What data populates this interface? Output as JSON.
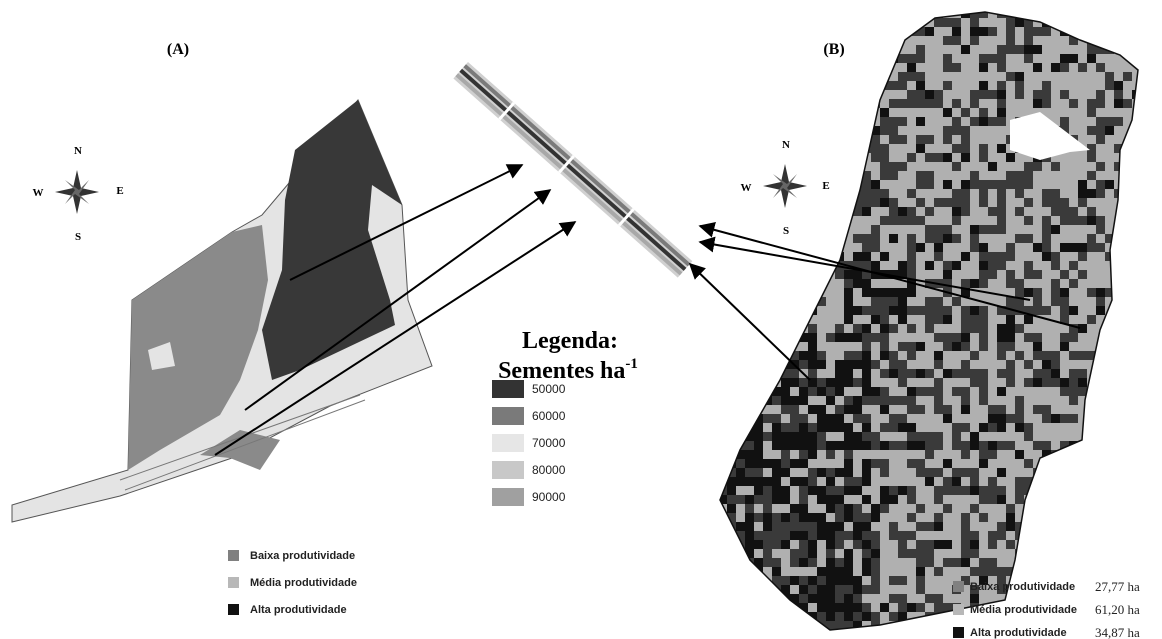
{
  "panel_a": {
    "label": "(A)",
    "compass": {
      "n": "N",
      "s": "S",
      "w": "W",
      "e": "E"
    },
    "legend": [
      "Baixa produtividade",
      "Média produtividade",
      "Alta produtividade"
    ]
  },
  "panel_b": {
    "label": "(B)",
    "compass": {
      "n": "N",
      "s": "S",
      "w": "W",
      "e": "E"
    },
    "legend": [
      {
        "label": "Baixa produtividade",
        "area": "27,77 ha"
      },
      {
        "label": "Média produtividade",
        "area": "61,20 ha"
      },
      {
        "label": "Alta  produtividade",
        "area": "34,87 ha"
      }
    ]
  },
  "seed_legend": {
    "title": "Legenda:",
    "subtitle": "Sementes ha",
    "subtitle_exponent": "-1",
    "values": [
      50000,
      60000,
      70000,
      80000,
      90000
    ]
  }
}
